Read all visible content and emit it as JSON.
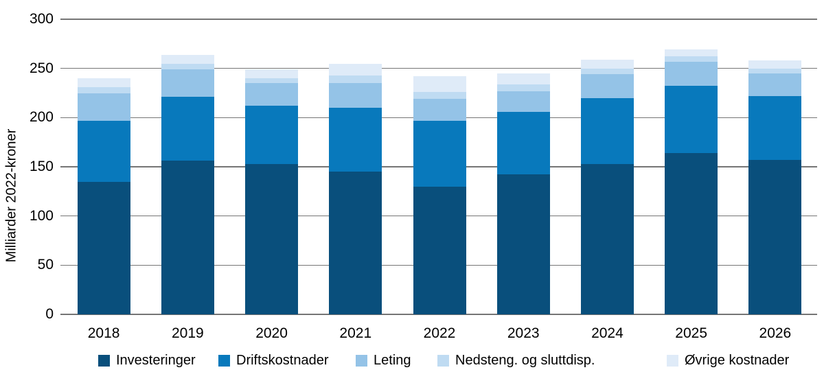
{
  "chart_data": {
    "type": "bar",
    "subtype": "stacked",
    "categories": [
      "2018",
      "2019",
      "2020",
      "2021",
      "2022",
      "2023",
      "2024",
      "2025",
      "2026"
    ],
    "series": [
      {
        "name": "Investeringer",
        "color": "#094f7c",
        "values": [
          135,
          156,
          153,
          145,
          130,
          142,
          153,
          164,
          157
        ]
      },
      {
        "name": "Driftskostnader",
        "color": "#0879bc",
        "values": [
          62,
          65,
          59,
          65,
          67,
          64,
          67,
          68,
          65
        ]
      },
      {
        "name": "Leting",
        "color": "#94c3e7",
        "values": [
          28,
          28,
          23,
          25,
          22,
          21,
          24,
          25,
          23
        ]
      },
      {
        "name": "Nedsteng. og sluttdisp.",
        "color": "#bfdbf2",
        "values": [
          6,
          6,
          5,
          8,
          7,
          7,
          6,
          5,
          5
        ]
      },
      {
        "name": "Øvrige kostnader",
        "color": "#dfebf8",
        "values": [
          9,
          9,
          9,
          12,
          16,
          11,
          9,
          7,
          8
        ]
      }
    ],
    "title": "",
    "xlabel": "",
    "ylabel": "Milliarder 2022-kroner",
    "ylim": [
      0,
      300
    ],
    "yticks": [
      0,
      50,
      100,
      150,
      200,
      250,
      300
    ],
    "grid": true,
    "grid_color": "#757575",
    "legend_position": "bottom"
  }
}
